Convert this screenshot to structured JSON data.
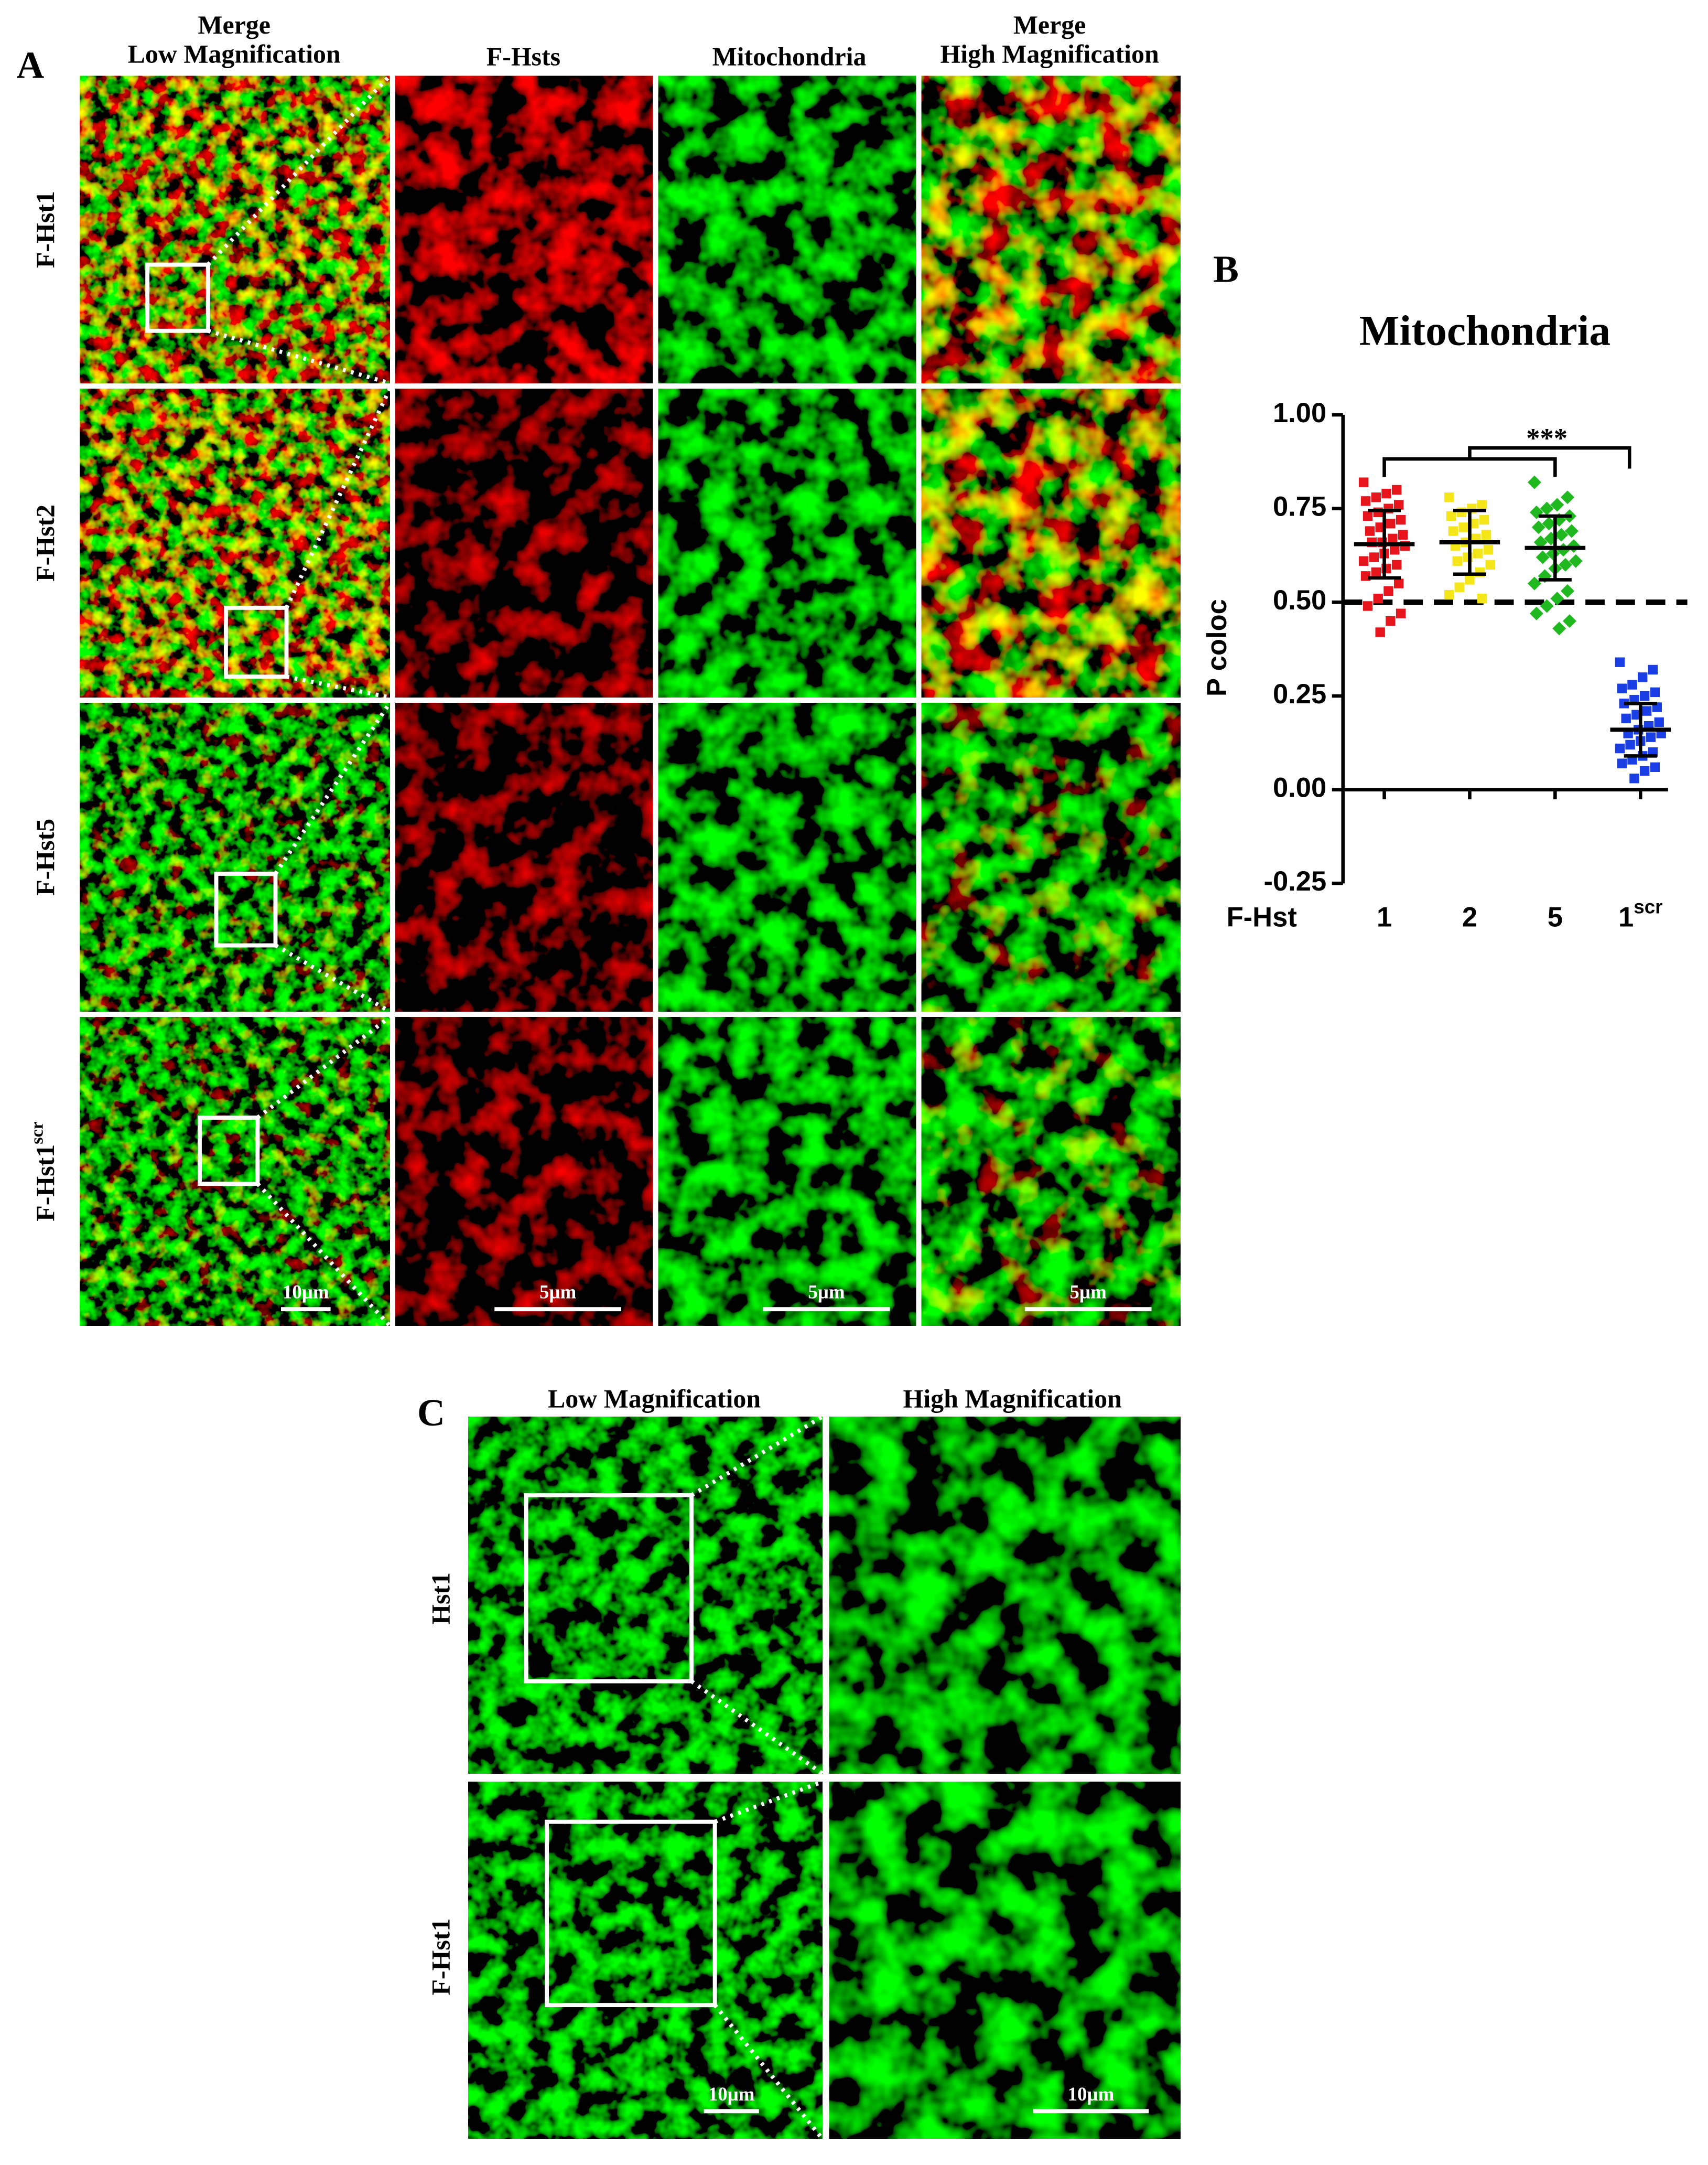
{
  "panel_a": {
    "label": "A",
    "columns": [
      {
        "line1": "Merge",
        "line2": "Low Magnification"
      },
      {
        "line1": "F-Hsts"
      },
      {
        "line1": "Mitochondria"
      },
      {
        "line1": "Merge",
        "line2": "High Magnification"
      }
    ],
    "rows": [
      {
        "text": "F-Hst1"
      },
      {
        "text": "F-Hst2"
      },
      {
        "text": "F-Hst5"
      },
      {
        "text": "F-Hst1",
        "sup": "scr"
      }
    ],
    "scale_bars": [
      "10µm",
      "5µm",
      "5µm",
      "5µm"
    ]
  },
  "panel_b_label": "B",
  "chart_data": {
    "type": "dotplot",
    "title": "Mitochondria",
    "y_label": "P coloc",
    "x_label": "F-Hst",
    "categories": [
      "1",
      "2",
      "5",
      "1"
    ],
    "category_superscripts": [
      null,
      null,
      null,
      "scr"
    ],
    "ylim": [
      -0.25,
      1.0
    ],
    "yticks": [
      {
        "value": -0.25,
        "label": "-0.25"
      },
      {
        "value": 0,
        "label": "0.00"
      },
      {
        "value": 0.25,
        "label": "0.25"
      },
      {
        "value": 0.5,
        "label": "0.50"
      },
      {
        "value": 0.75,
        "label": "0.75"
      },
      {
        "value": 1.0,
        "label": "1.00"
      }
    ],
    "reference_line": 0.5,
    "significance": "***",
    "groups": [
      {
        "color": "#e8141c",
        "mean": 0.655,
        "sd": 0.09,
        "points": [
          0.82,
          0.8,
          0.79,
          0.78,
          0.77,
          0.76,
          0.75,
          0.74,
          0.73,
          0.72,
          0.71,
          0.7,
          0.69,
          0.68,
          0.67,
          0.66,
          0.66,
          0.65,
          0.64,
          0.63,
          0.62,
          0.61,
          0.6,
          0.59,
          0.58,
          0.57,
          0.55,
          0.53,
          0.51,
          0.49,
          0.47,
          0.45,
          0.42
        ]
      },
      {
        "color": "#f5e61a",
        "mean": 0.66,
        "sd": 0.085,
        "points": [
          0.78,
          0.76,
          0.75,
          0.74,
          0.73,
          0.72,
          0.71,
          0.7,
          0.69,
          0.68,
          0.67,
          0.66,
          0.65,
          0.64,
          0.63,
          0.62,
          0.61,
          0.6,
          0.58,
          0.56,
          0.54,
          0.52,
          0.51
        ]
      },
      {
        "color": "#1fb81f",
        "mean": 0.645,
        "sd": 0.085,
        "points": [
          0.82,
          0.78,
          0.76,
          0.75,
          0.74,
          0.73,
          0.72,
          0.71,
          0.7,
          0.69,
          0.68,
          0.67,
          0.66,
          0.65,
          0.64,
          0.63,
          0.62,
          0.61,
          0.6,
          0.59,
          0.57,
          0.55,
          0.53,
          0.51,
          0.49,
          0.47,
          0.45,
          0.43
        ]
      },
      {
        "color": "#1a3ee6",
        "mean": 0.16,
        "sd": 0.07,
        "points": [
          0.34,
          0.32,
          0.3,
          0.28,
          0.27,
          0.26,
          0.25,
          0.24,
          0.23,
          0.22,
          0.21,
          0.2,
          0.19,
          0.18,
          0.17,
          0.16,
          0.15,
          0.15,
          0.14,
          0.13,
          0.12,
          0.11,
          0.1,
          0.09,
          0.08,
          0.07,
          0.06,
          0.05,
          0.03
        ]
      }
    ]
  },
  "panel_c": {
    "label": "C",
    "columns": [
      "Low Magnification",
      "High Magnification"
    ],
    "rows": [
      "Hst1",
      "F-Hst1"
    ],
    "scale_bars": [
      "10µm",
      "10µm"
    ]
  }
}
